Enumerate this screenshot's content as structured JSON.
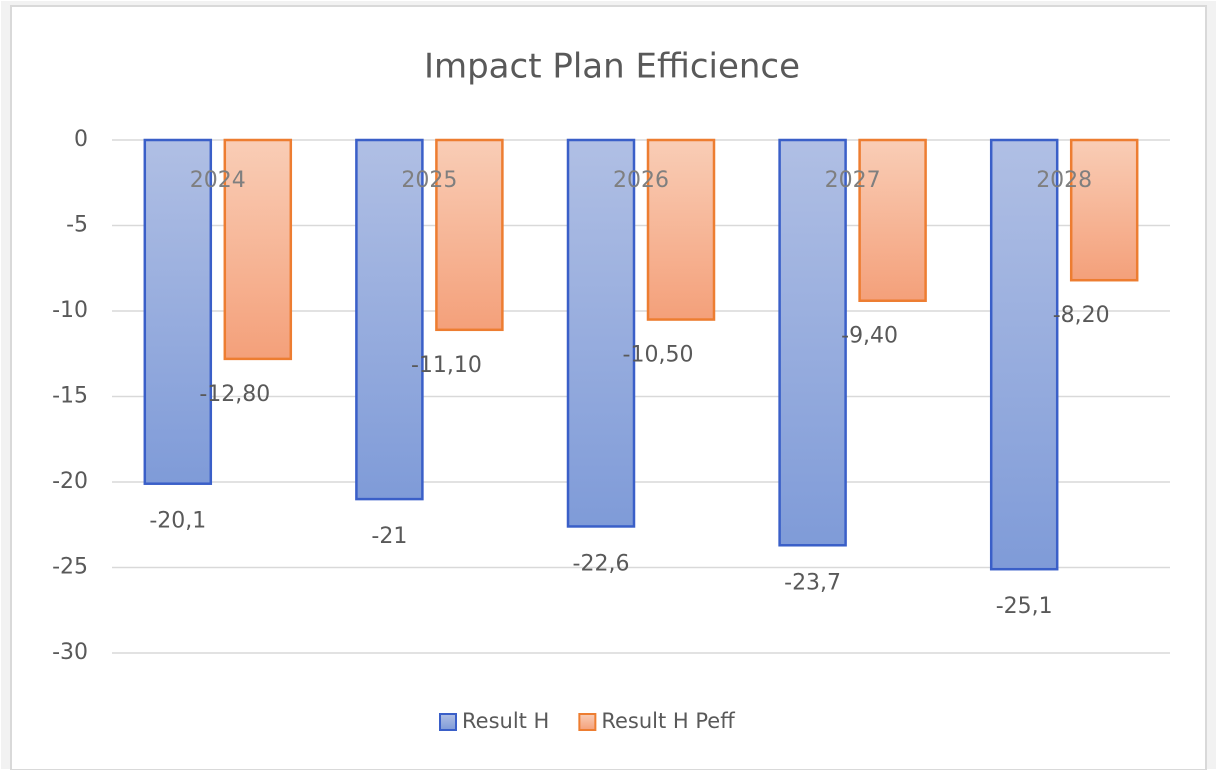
{
  "chart_data": {
    "type": "bar",
    "title": "Impact  Plan Efficience",
    "categories": [
      "2024",
      "2025",
      "2026",
      "2027",
      "2028"
    ],
    "series": [
      {
        "name": "Result H",
        "color": "#3a5fc8",
        "values": [
          -20.1,
          -21,
          -22.6,
          -23.7,
          -25.1
        ],
        "value_labels": [
          "-20,1",
          "-21",
          "-22,6",
          "-23,7",
          "-25,1"
        ]
      },
      {
        "name": "Result H Peff",
        "color": "#ed7d31",
        "values": [
          -12.8,
          -11.1,
          -10.5,
          -9.4,
          -8.2
        ],
        "value_labels": [
          "-12,80",
          "-11,10",
          "-10,50",
          "-9,40",
          "-8,20"
        ]
      }
    ],
    "ylim": [
      -30,
      0
    ],
    "yticks": [
      0,
      -5,
      -10,
      -15,
      -20,
      -25,
      -30
    ],
    "grid": true,
    "legend": "bottom"
  }
}
